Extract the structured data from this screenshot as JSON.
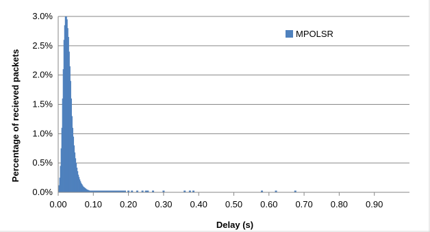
{
  "chart_data": {
    "type": "bar",
    "xlabel": "Delay (s)",
    "ylabel": "Percentage of recieved packets",
    "xlim": [
      0,
      1.0
    ],
    "ylim": [
      0,
      0.03
    ],
    "grid": "horizontal",
    "legend_position": "top-right",
    "x_ticks": [
      "0.00",
      "0.10",
      "0.20",
      "0.30",
      "0.40",
      "0.50",
      "0.60",
      "0.70",
      "0.80",
      "0.90"
    ],
    "y_ticks": [
      "0.0%",
      "0.5%",
      "1.0%",
      "1.5%",
      "2.0%",
      "2.5%",
      "3.0%"
    ],
    "series": [
      {
        "name": "MPOLSR",
        "color": "#4F81BD",
        "x": [
          0.002,
          0.004,
          0.006,
          0.008,
          0.01,
          0.012,
          0.014,
          0.016,
          0.018,
          0.02,
          0.022,
          0.024,
          0.026,
          0.028,
          0.03,
          0.032,
          0.034,
          0.036,
          0.038,
          0.04,
          0.042,
          0.044,
          0.046,
          0.048,
          0.05,
          0.052,
          0.054,
          0.056,
          0.058,
          0.06,
          0.062,
          0.064,
          0.066,
          0.068,
          0.07,
          0.072,
          0.074,
          0.076,
          0.078,
          0.08,
          0.082,
          0.084,
          0.086,
          0.088,
          0.09,
          0.092,
          0.094,
          0.096,
          0.098,
          0.1,
          0.104,
          0.108,
          0.112,
          0.116,
          0.12,
          0.124,
          0.128,
          0.132,
          0.136,
          0.14,
          0.145,
          0.15,
          0.155,
          0.16,
          0.165,
          0.17,
          0.175,
          0.18,
          0.185,
          0.19,
          0.2,
          0.21,
          0.225,
          0.24,
          0.25,
          0.255,
          0.27,
          0.3,
          0.36,
          0.375,
          0.385,
          0.58,
          0.62,
          0.675
        ],
        "values": [
          0.0005,
          0.0012,
          0.0025,
          0.0045,
          0.0075,
          0.011,
          0.016,
          0.021,
          0.026,
          0.0285,
          0.03,
          0.0295,
          0.028,
          0.0265,
          0.024,
          0.0215,
          0.019,
          0.016,
          0.013,
          0.011,
          0.0095,
          0.008,
          0.0068,
          0.0058,
          0.005,
          0.0042,
          0.0036,
          0.003,
          0.0026,
          0.0022,
          0.0019,
          0.0016,
          0.0014,
          0.0012,
          0.001,
          0.0009,
          0.0008,
          0.0007,
          0.0006,
          0.0005,
          0.00045,
          0.0004,
          0.00035,
          0.0003,
          0.00028,
          0.00025,
          0.00022,
          0.0002,
          0.00018,
          0.00016,
          0.00014,
          0.00012,
          0.0001,
          0.0001,
          9e-05,
          8e-05,
          8e-05,
          7e-05,
          7e-05,
          6e-05,
          6e-05,
          6e-05,
          5e-05,
          5e-05,
          5e-05,
          5e-05,
          4e-05,
          4e-05,
          4e-05,
          4e-05,
          4e-05,
          4e-05,
          5e-05,
          4e-05,
          4e-05,
          4e-05,
          4e-05,
          4e-05,
          4e-05,
          4e-05,
          4e-05,
          4e-05,
          4e-05,
          4e-05
        ]
      }
    ]
  }
}
